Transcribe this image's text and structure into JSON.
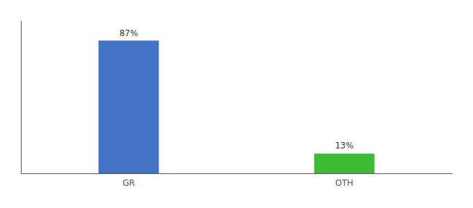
{
  "chart_data": {
    "type": "bar",
    "categories": [
      "GR",
      "OTH"
    ],
    "values": [
      87,
      13
    ],
    "value_labels": [
      "87%",
      "13%"
    ],
    "colors": [
      "#4472c4",
      "#3dbb35"
    ],
    "ylim": [
      0,
      100
    ],
    "data_labels": true,
    "tick_labels": "x",
    "grid": false
  }
}
